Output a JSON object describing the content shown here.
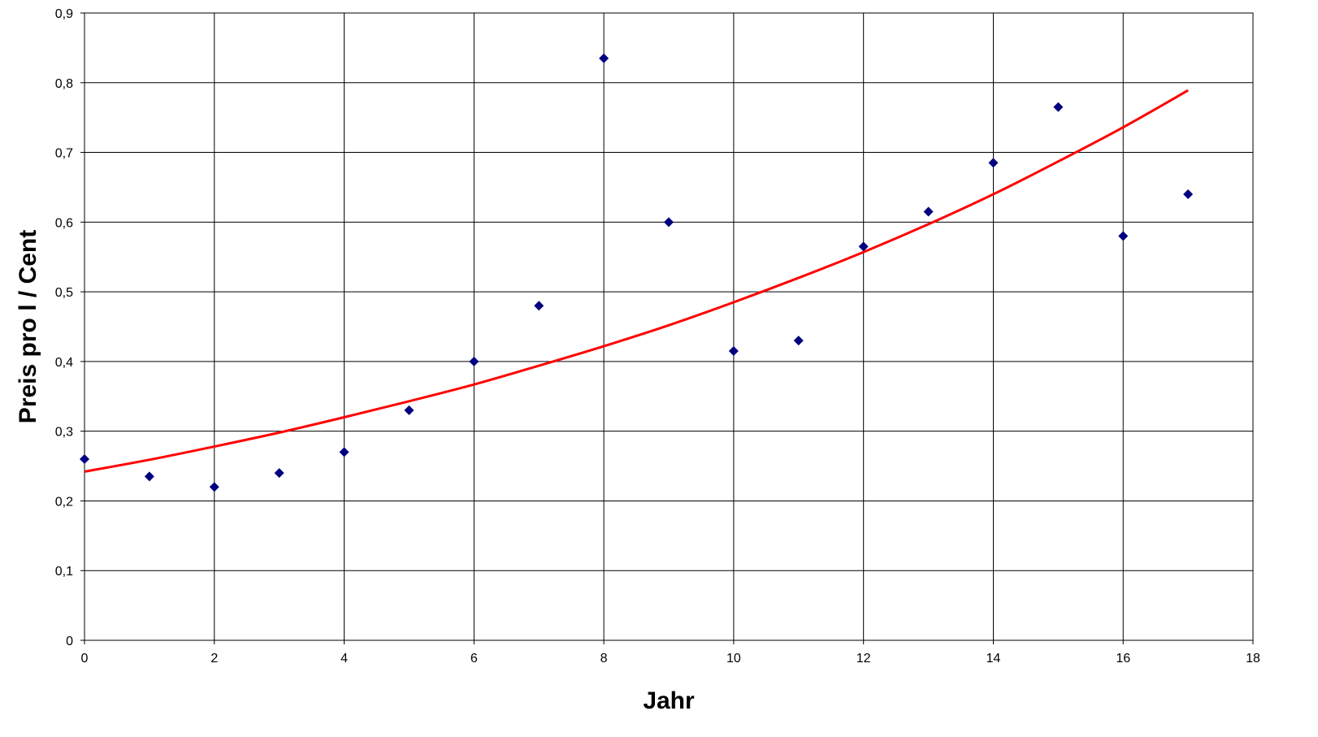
{
  "chart_data": {
    "type": "scatter",
    "title": "",
    "xlabel": "Jahr",
    "ylabel": "Preis pro l / Cent",
    "xlim": [
      0,
      18
    ],
    "ylim": [
      0,
      0.9
    ],
    "x_ticks": [
      0,
      2,
      4,
      6,
      8,
      10,
      12,
      14,
      16,
      18
    ],
    "y_ticks": [
      0,
      0.1,
      0.2,
      0.3,
      0.4,
      0.5,
      0.6,
      0.7,
      0.8,
      0.9
    ],
    "x_tick_labels": [
      "0",
      "2",
      "4",
      "6",
      "8",
      "10",
      "12",
      "14",
      "16",
      "18"
    ],
    "y_tick_labels": [
      "0",
      "0,1",
      "0,2",
      "0,3",
      "0,4",
      "0,5",
      "0,6",
      "0,7",
      "0,8",
      "0,9"
    ],
    "grid": true,
    "legend": "none",
    "series": [
      {
        "kind": "scatter",
        "marker": "diamond",
        "color": "#000080",
        "x": [
          0,
          1,
          2,
          3,
          4,
          5,
          6,
          7,
          8,
          9,
          10,
          11,
          12,
          13,
          14,
          15,
          16,
          17
        ],
        "y": [
          0.26,
          0.235,
          0.22,
          0.24,
          0.27,
          0.33,
          0.4,
          0.48,
          0.835,
          0.6,
          0.415,
          0.43,
          0.565,
          0.615,
          0.685,
          0.765,
          0.58,
          0.64
        ]
      },
      {
        "kind": "line",
        "color": "#ff0000",
        "x": [
          0,
          1,
          2,
          3,
          4,
          5,
          6,
          7,
          8,
          9,
          10,
          11,
          12,
          13,
          14,
          15,
          16,
          17
        ],
        "y": [
          0.242,
          0.259,
          0.278,
          0.298,
          0.32,
          0.343,
          0.367,
          0.394,
          0.422,
          0.452,
          0.485,
          0.52,
          0.557,
          0.597,
          0.64,
          0.687,
          0.736,
          0.789
        ]
      }
    ]
  }
}
